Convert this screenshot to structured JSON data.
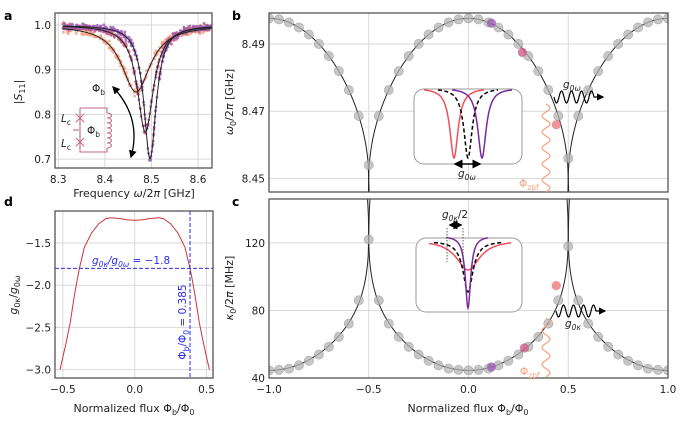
{
  "labels": {
    "a": {
      "letter": "a",
      "ylabel": [
        "|",
        "S",
        "11",
        "|"
      ],
      "xlabel": [
        "Frequency ",
        "ω",
        "/2",
        "π",
        " [GHz]"
      ],
      "arrow_flux": [
        "Φ",
        "b"
      ],
      "circuit_flux": [
        "Φ",
        "b"
      ],
      "lc_top": [
        "L",
        "c"
      ],
      "lc_bottom": [
        "L",
        "c"
      ]
    },
    "b": {
      "letter": "b",
      "ylabel": [
        "ω",
        "0",
        "/2",
        "π",
        " [GHz]"
      ],
      "inset_shift": [
        "g",
        "0ω"
      ],
      "wave_label": [
        "g",
        "0ω"
      ],
      "zpf": [
        "Φ",
        "zpf"
      ]
    },
    "c": {
      "letter": "c",
      "ylabel": [
        "κ",
        "0",
        "/2",
        "π",
        " [MHz]"
      ],
      "xlabel": [
        "Normalized flux Φ",
        "b",
        "/Φ",
        "0"
      ],
      "inset_shift": [
        "g",
        "0κ",
        "/2"
      ],
      "wave_label": [
        "g",
        "0κ"
      ],
      "zpf": [
        "Φ",
        "zpf"
      ]
    },
    "d": {
      "letter": "d",
      "ylabel": [
        "g",
        "0κ",
        "/",
        "g",
        "0ω"
      ],
      "xlabel": [
        "Normalized flux Φ",
        "b",
        "/Φ",
        "0"
      ],
      "hline_label": [
        "g",
        "0κ",
        "/",
        "g",
        "0ω",
        " = −1.8"
      ],
      "vline_label": [
        "Φ",
        "b",
        "/Φ",
        "0",
        " = 0.385"
      ]
    }
  },
  "colors": {
    "salmon": "#f6a285",
    "pink": "#c8608a",
    "purple": "#9b5fb5",
    "red_curve": "#c8373a",
    "blue": "#2b2bf0",
    "orange": "#f6a27a",
    "gray_point": "#b5b5b5",
    "inset_red": "#f0505a",
    "inset_purple": "#7a2a9a"
  },
  "chart_data": [
    {
      "panel": "a",
      "type": "scatter",
      "xlim": [
        8.293,
        8.63
      ],
      "ylim": [
        0.68,
        1.027
      ],
      "grid": true,
      "xticks": [
        8.3,
        8.4,
        8.5,
        8.6
      ],
      "xticklabels": [
        "8.3",
        "8.4",
        "8.5",
        "8.6"
      ],
      "yticks": [
        0.7,
        0.8,
        0.9,
        1.0
      ],
      "yticklabels": [
        "0.7",
        "0.8",
        "0.9",
        "1.0"
      ],
      "series": [
        {
          "color": "#f6a285",
          "center_GHz": 8.467,
          "min": 0.85,
          "linewidth_GHz": 0.075
        },
        {
          "color": "#c8608a",
          "center_GHz": 8.487,
          "min": 0.76,
          "linewidth_GHz": 0.042
        },
        {
          "color": "#9b5fb5",
          "center_GHz": 8.497,
          "min": 0.7,
          "linewidth_GHz": 0.032
        }
      ]
    },
    {
      "panel": "b",
      "type": "scatter",
      "xlim": [
        -1,
        1
      ],
      "ylim": [
        8.446,
        8.4992
      ],
      "grid": true,
      "xticks": [
        -0.5,
        0,
        0.5
      ],
      "yticks": [
        8.45,
        8.47,
        8.49
      ],
      "yticklabels": [
        "8.45",
        "8.47",
        "8.49"
      ],
      "fit": {
        "offset": 8.4496,
        "amplitude": 0.048
      },
      "x": [
        -1.0,
        -0.95,
        -0.9,
        -0.85,
        -0.8,
        -0.75,
        -0.7,
        -0.65,
        -0.6,
        -0.55,
        -0.5,
        -0.45,
        -0.4,
        -0.35,
        -0.3,
        -0.25,
        -0.2,
        -0.15,
        -0.1,
        -0.05,
        0,
        0.05,
        0.1,
        0.15,
        0.2,
        0.25,
        0.3,
        0.35,
        0.4,
        0.45,
        0.5,
        0.55,
        0.6,
        0.65,
        0.7,
        0.75,
        0.8,
        0.85,
        0.9,
        0.95,
        1.0
      ],
      "y": [
        8.4976,
        8.4973,
        8.4964,
        8.4949,
        8.4928,
        8.49,
        8.4864,
        8.4819,
        8.4763,
        8.4686,
        8.454,
        8.4686,
        8.4763,
        8.4819,
        8.4864,
        8.49,
        8.4928,
        8.4949,
        8.4964,
        8.4973,
        8.4976,
        8.4973,
        8.4964,
        8.4949,
        8.4928,
        8.49,
        8.4864,
        8.4819,
        8.4763,
        8.4686,
        8.456,
        8.4686,
        8.4763,
        8.4819,
        8.4864,
        8.49,
        8.4928,
        8.4949,
        8.4964,
        8.4973,
        8.4976
      ],
      "highlighted": [
        {
          "x": 0.115,
          "y": 8.4962,
          "color": "#9b5fb5"
        },
        {
          "x": 0.27,
          "y": 8.4875,
          "color": "#c8608a"
        },
        {
          "x": 0.44,
          "y": 8.466,
          "color": "#eb7a80"
        }
      ]
    },
    {
      "panel": "c",
      "type": "scatter",
      "xlim": [
        -1,
        1
      ],
      "ylim": [
        40,
        146
      ],
      "grid": true,
      "xticks": [
        -1,
        -0.5,
        0,
        0.5,
        1
      ],
      "xticklabels": [
        "−1.0",
        "−0.5",
        "0.0",
        "0.5",
        "1.0"
      ],
      "yticks": [
        40,
        80,
        120
      ],
      "yticklabels": [
        "40",
        "80",
        "120"
      ],
      "fit": {
        "offset": 44.5,
        "linear": 62,
        "quartic": 18
      },
      "x": [
        -1.0,
        -0.95,
        -0.9,
        -0.85,
        -0.8,
        -0.75,
        -0.7,
        -0.65,
        -0.6,
        -0.55,
        -0.5,
        -0.45,
        -0.4,
        -0.35,
        -0.3,
        -0.25,
        -0.2,
        -0.15,
        -0.1,
        -0.05,
        0,
        0.05,
        0.1,
        0.15,
        0.2,
        0.25,
        0.3,
        0.35,
        0.4,
        0.45,
        0.5,
        0.55,
        0.6,
        0.65,
        0.7,
        0.75,
        0.8,
        0.85,
        0.9,
        0.95,
        1.0
      ],
      "y": [
        44.5,
        44.8,
        45.5,
        47.5,
        50.2,
        53.9,
        58.5,
        64.4,
        72.2,
        86,
        122,
        86,
        72.2,
        64.4,
        58.5,
        53.9,
        50.2,
        47.5,
        45.5,
        44.8,
        44.5,
        44.8,
        45.5,
        47.5,
        50.2,
        53.9,
        58.5,
        64.4,
        72.2,
        86,
        118,
        86,
        72.2,
        64.4,
        58.5,
        53.9,
        50.2,
        47.5,
        45.5,
        44.8,
        44.5
      ],
      "highlighted": [
        {
          "x": 0.115,
          "y": 46.5,
          "color": "#9b5fb5"
        },
        {
          "x": 0.28,
          "y": 57.8,
          "color": "#c8608a"
        },
        {
          "x": 0.44,
          "y": 94.7,
          "color": "#eb7a80"
        }
      ]
    },
    {
      "panel": "d",
      "type": "line",
      "xlim": [
        -0.555,
        0.545
      ],
      "ylim": [
        -3.1,
        -1.12
      ],
      "grid": true,
      "xticks": [
        -0.5,
        0,
        0.5
      ],
      "xticklabels": [
        "−0.5",
        "0.0",
        "0.5"
      ],
      "yticks": [
        -3.0,
        -2.5,
        -2.0,
        -1.5
      ],
      "yticklabels": [
        "−3.0",
        "−2.5",
        "−2.0",
        "−1.5"
      ],
      "x": [
        -0.52,
        -0.5,
        -0.48,
        -0.45,
        -0.42,
        -0.4,
        -0.385,
        -0.35,
        -0.3,
        -0.25,
        -0.2,
        -0.17,
        -0.1,
        -0.05,
        0,
        0.05,
        0.1,
        0.17,
        0.2,
        0.25,
        0.3,
        0.35,
        0.385,
        0.4,
        0.42,
        0.45,
        0.48,
        0.5,
        0.52
      ],
      "y": [
        -3.0,
        -2.85,
        -2.7,
        -2.45,
        -2.12,
        -1.93,
        -1.8,
        -1.55,
        -1.38,
        -1.27,
        -1.21,
        -1.2,
        -1.21,
        -1.225,
        -1.23,
        -1.225,
        -1.21,
        -1.2,
        -1.21,
        -1.27,
        -1.38,
        -1.55,
        -1.8,
        -1.93,
        -2.12,
        -2.45,
        -2.7,
        -2.85,
        -3.0
      ],
      "hline": -1.8,
      "vline": 0.385
    }
  ]
}
